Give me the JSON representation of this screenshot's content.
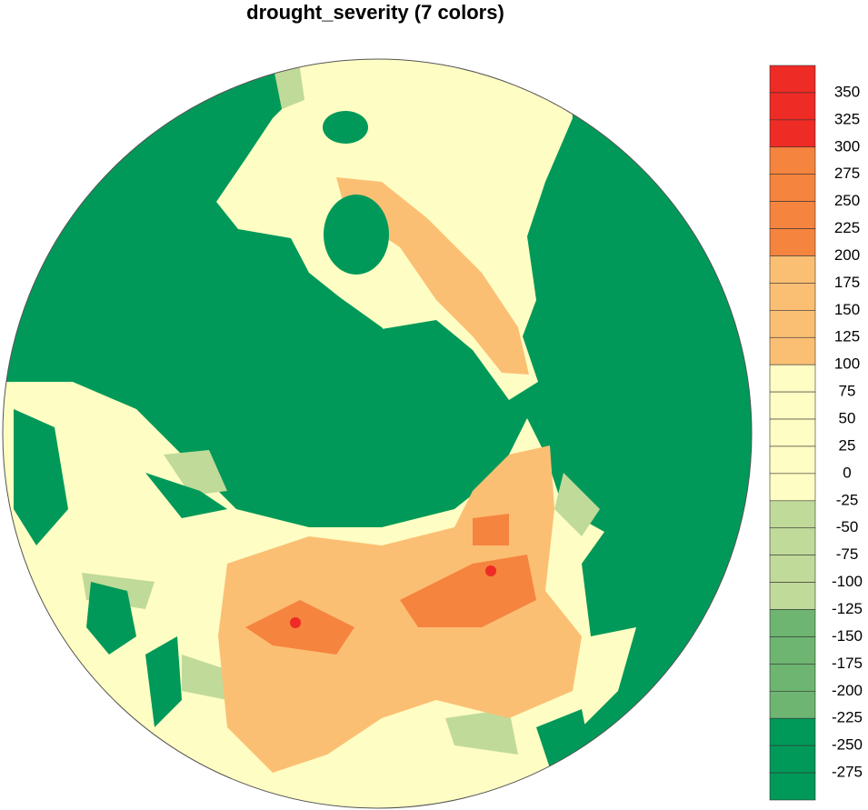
{
  "title": "drought_severity (7 colors)",
  "colorbar": {
    "levels": [
      350,
      325,
      300,
      275,
      250,
      225,
      200,
      175,
      150,
      125,
      100,
      75,
      50,
      25,
      0,
      -25,
      -50,
      -75,
      -100,
      -125,
      -150,
      -175,
      -200,
      -225,
      -250,
      -275
    ],
    "color_thresholds": [
      300,
      200,
      100,
      -25,
      -125,
      -225
    ],
    "colors": [
      "#ee2b25",
      "#f5843f",
      "#fbbf74",
      "#fefdc3",
      "#c0da99",
      "#6db571",
      "#009959"
    ]
  }
}
